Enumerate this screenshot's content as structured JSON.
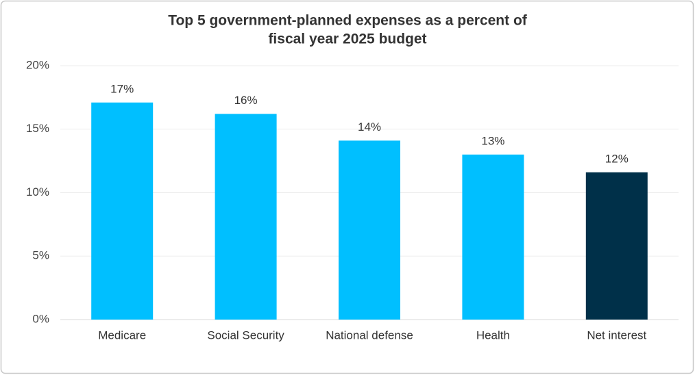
{
  "chart_data": {
    "type": "bar",
    "title": [
      "Top 5 government-planned expenses as a percent of",
      "fiscal year 2025 budget"
    ],
    "categories": [
      "Medicare",
      "Social Security",
      "National defense",
      "Health",
      "Net interest"
    ],
    "values": [
      17.1,
      16.2,
      14.1,
      13.0,
      11.6
    ],
    "value_labels": [
      "17%",
      "16%",
      "14%",
      "13%",
      "12%"
    ],
    "colors": [
      "#00bfff",
      "#00bfff",
      "#00bfff",
      "#00bfff",
      "#003049"
    ],
    "ylim": [
      0,
      20
    ],
    "yticks": [
      {
        "value": 0,
        "label": "0%"
      },
      {
        "value": 5,
        "label": "5%"
      },
      {
        "value": 10,
        "label": "10%"
      },
      {
        "value": 15,
        "label": "15%"
      },
      {
        "value": 20,
        "label": "20%"
      }
    ],
    "grid": true
  }
}
